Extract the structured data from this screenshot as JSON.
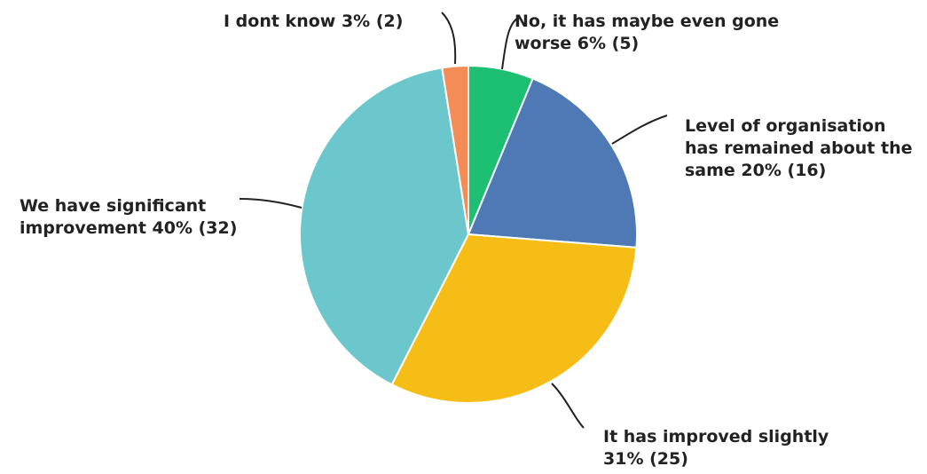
{
  "chart_data": {
    "type": "pie",
    "start_angle_deg": 0,
    "direction": "clockwise",
    "slices": [
      {
        "label": "No, it has maybe even gone worse 6% (5)",
        "category": "No, it has maybe even gone worse",
        "percent": 6,
        "count": 5,
        "color": "#1dbf73"
      },
      {
        "label": "Level of organisation has remained about the same 20% (16)",
        "category": "Level of organisation has remained about the same",
        "percent": 20,
        "count": 16,
        "color": "#4e79b4"
      },
      {
        "label": "It has improved slightly 31% (25)",
        "category": "It has improved slightly",
        "percent": 31,
        "count": 25,
        "color": "#f6bd16"
      },
      {
        "label": "We have significant improvement 40% (32)",
        "category": "We have significant improvement",
        "percent": 40,
        "count": 32,
        "color": "#6cc7cc"
      },
      {
        "label": "I dont know 3% (2)",
        "category": "I dont know",
        "percent": 3,
        "count": 2,
        "color": "#f48c57"
      }
    ]
  }
}
